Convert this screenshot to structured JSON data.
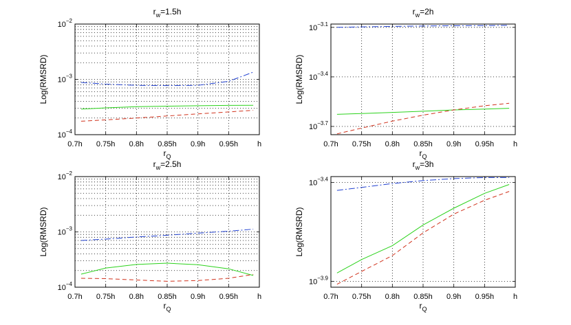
{
  "chart_data": [
    {
      "type": "line",
      "title": "r_w=1.5h",
      "title_main": "r",
      "title_sub": "w",
      "title_rest": "=1.5h",
      "xlabel_main": "r",
      "xlabel_sub": "Q",
      "ylabel": "Log(RMSRD)",
      "yscale": "log",
      "xlim": [
        0.7,
        1.0
      ],
      "ylim_exp": [
        -4,
        -2
      ],
      "minor_grid": true,
      "x_ticks": [
        0.7,
        0.75,
        0.8,
        0.85,
        0.9,
        0.95,
        1.0
      ],
      "x_tick_labels": [
        "0.7h",
        "0.75h",
        "0.8h",
        "0.85h",
        "0.9h",
        "0.95h",
        "h"
      ],
      "y_ticks": [
        -4,
        -3,
        -2
      ],
      "y_tick_base": "10",
      "y_tick_exps": [
        "−4",
        "−3",
        "−2"
      ],
      "series": [
        {
          "name": "blue",
          "color": "#1f3fd0",
          "dash": "9 3 2 3",
          "x": [
            0.71,
            0.75,
            0.8,
            0.85,
            0.9,
            0.95,
            0.99
          ],
          "y": [
            0.00088,
            0.00082,
            0.00078,
            0.00077,
            0.00078,
            0.00092,
            0.00135
          ]
        },
        {
          "name": "green",
          "color": "#2ad21a",
          "dash": "",
          "x": [
            0.71,
            0.75,
            0.8,
            0.85,
            0.9,
            0.95,
            0.99
          ],
          "y": [
            0.00029,
            0.000305,
            0.00032,
            0.000328,
            0.000333,
            0.000338,
            0.00034
          ]
        },
        {
          "name": "red",
          "color": "#d0301a",
          "dash": "6 4",
          "x": [
            0.71,
            0.75,
            0.8,
            0.85,
            0.9,
            0.95,
            0.99
          ],
          "y": [
            0.000175,
            0.000185,
            0.0002,
            0.000218,
            0.000238,
            0.000258,
            0.000275
          ]
        }
      ]
    },
    {
      "type": "line",
      "title": "r_w=2h",
      "title_main": "r",
      "title_sub": "w",
      "title_rest": "=2h",
      "xlabel_main": "r",
      "xlabel_sub": "Q",
      "ylabel": "Log(RMSRD)",
      "yscale": "log",
      "xlim": [
        0.7,
        1.0
      ],
      "ylim_exp": [
        -3.75,
        -3.08
      ],
      "minor_grid": false,
      "x_ticks": [
        0.7,
        0.75,
        0.8,
        0.85,
        0.9,
        0.95,
        1.0
      ],
      "x_tick_labels": [
        "0.7h",
        "0.75h",
        "0.8h",
        "0.85h",
        "0.9h",
        "0.95h",
        "h"
      ],
      "y_ticks": [
        -3.7,
        -3.4,
        -3.1
      ],
      "y_tick_base": "10",
      "y_tick_exps": [
        "−3.7",
        "−3.4",
        "−3.1"
      ],
      "series": [
        {
          "name": "blue",
          "color": "#1f3fd0",
          "dash": "9 3 2 3",
          "x": [
            0.71,
            0.75,
            0.8,
            0.85,
            0.9,
            0.95,
            0.99
          ],
          "y": [
            -3.1,
            -3.097,
            -3.094,
            -3.092,
            -3.09,
            -3.089,
            -3.088
          ]
        },
        {
          "name": "green",
          "color": "#2ad21a",
          "dash": "",
          "x": [
            0.71,
            0.75,
            0.8,
            0.85,
            0.9,
            0.95,
            0.99
          ],
          "y": [
            -3.627,
            -3.622,
            -3.615,
            -3.608,
            -3.6,
            -3.595,
            -3.59
          ]
        },
        {
          "name": "red",
          "color": "#d0301a",
          "dash": "6 4",
          "x": [
            0.71,
            0.75,
            0.8,
            0.85,
            0.9,
            0.95,
            0.99
          ],
          "y": [
            -3.745,
            -3.71,
            -3.668,
            -3.632,
            -3.6,
            -3.575,
            -3.56
          ]
        }
      ]
    },
    {
      "type": "line",
      "title": "r_w=2.5h",
      "title_main": "r",
      "title_sub": "w",
      "title_rest": "=2.5h",
      "xlabel_main": "r",
      "xlabel_sub": "Q",
      "ylabel": "Log(RMSRD)",
      "yscale": "log",
      "xlim": [
        0.7,
        1.0
      ],
      "ylim_exp": [
        -4,
        -2
      ],
      "minor_grid": true,
      "x_ticks": [
        0.7,
        0.75,
        0.8,
        0.85,
        0.9,
        0.95,
        1.0
      ],
      "x_tick_labels": [
        "0.7h",
        "0.75h",
        "0.8h",
        "0.85h",
        "0.9h",
        "0.95h",
        "h"
      ],
      "y_ticks": [
        -4,
        -3,
        -2
      ],
      "y_tick_base": "10",
      "y_tick_exps": [
        "−4",
        "−3",
        "−2"
      ],
      "series": [
        {
          "name": "blue",
          "color": "#1f3fd0",
          "dash": "9 3 2 3",
          "x": [
            0.71,
            0.75,
            0.8,
            0.85,
            0.9,
            0.95,
            0.99
          ],
          "y": [
            0.0007,
            0.00074,
            0.00081,
            0.00087,
            0.00095,
            0.00103,
            0.00112
          ]
        },
        {
          "name": "green",
          "color": "#2ad21a",
          "dash": "",
          "x": [
            0.71,
            0.75,
            0.8,
            0.85,
            0.9,
            0.95,
            0.99
          ],
          "y": [
            0.000172,
            0.000222,
            0.000258,
            0.000272,
            0.000255,
            0.000215,
            0.000163
          ]
        },
        {
          "name": "red",
          "color": "#d0301a",
          "dash": "6 4",
          "x": [
            0.71,
            0.75,
            0.8,
            0.85,
            0.9,
            0.95,
            0.99
          ],
          "y": [
            0.000145,
            0.000143,
            0.000135,
            0.000128,
            0.000132,
            0.000145,
            0.00017
          ]
        }
      ]
    },
    {
      "type": "line",
      "title": "r_w=3h",
      "title_main": "r",
      "title_sub": "w",
      "title_rest": "=3h",
      "xlabel_main": "r",
      "xlabel_sub": "Q",
      "ylabel": "Log(RMSRD)",
      "yscale": "log",
      "xlim": [
        0.7,
        1.0
      ],
      "ylim_exp": [
        -3.93,
        -3.37
      ],
      "minor_grid": false,
      "x_ticks": [
        0.7,
        0.75,
        0.8,
        0.85,
        0.9,
        0.95,
        1.0
      ],
      "x_tick_labels": [
        "0.7h",
        "0.75h",
        "0.8h",
        "0.85h",
        "0.9h",
        "0.95h",
        "h"
      ],
      "y_ticks": [
        -3.9,
        -3.4
      ],
      "y_tick_base": "10",
      "y_tick_exps": [
        "−3.9",
        "−3.4"
      ],
      "series": [
        {
          "name": "blue",
          "color": "#1f3fd0",
          "dash": "9 3 2 3",
          "x": [
            0.71,
            0.75,
            0.8,
            0.85,
            0.9,
            0.95,
            0.99
          ],
          "y": [
            -3.44,
            -3.425,
            -3.405,
            -3.39,
            -3.38,
            -3.375,
            -3.375
          ]
        },
        {
          "name": "green",
          "color": "#2ad21a",
          "dash": "",
          "x": [
            0.71,
            0.75,
            0.8,
            0.85,
            0.9,
            0.95,
            0.99
          ],
          "y": [
            -3.858,
            -3.79,
            -3.72,
            -3.615,
            -3.53,
            -3.455,
            -3.41
          ]
        },
        {
          "name": "red",
          "color": "#d0301a",
          "dash": "6 4",
          "x": [
            0.71,
            0.75,
            0.8,
            0.85,
            0.9,
            0.95,
            0.99
          ],
          "y": [
            -3.915,
            -3.85,
            -3.77,
            -3.655,
            -3.56,
            -3.49,
            -3.445
          ]
        }
      ]
    }
  ]
}
